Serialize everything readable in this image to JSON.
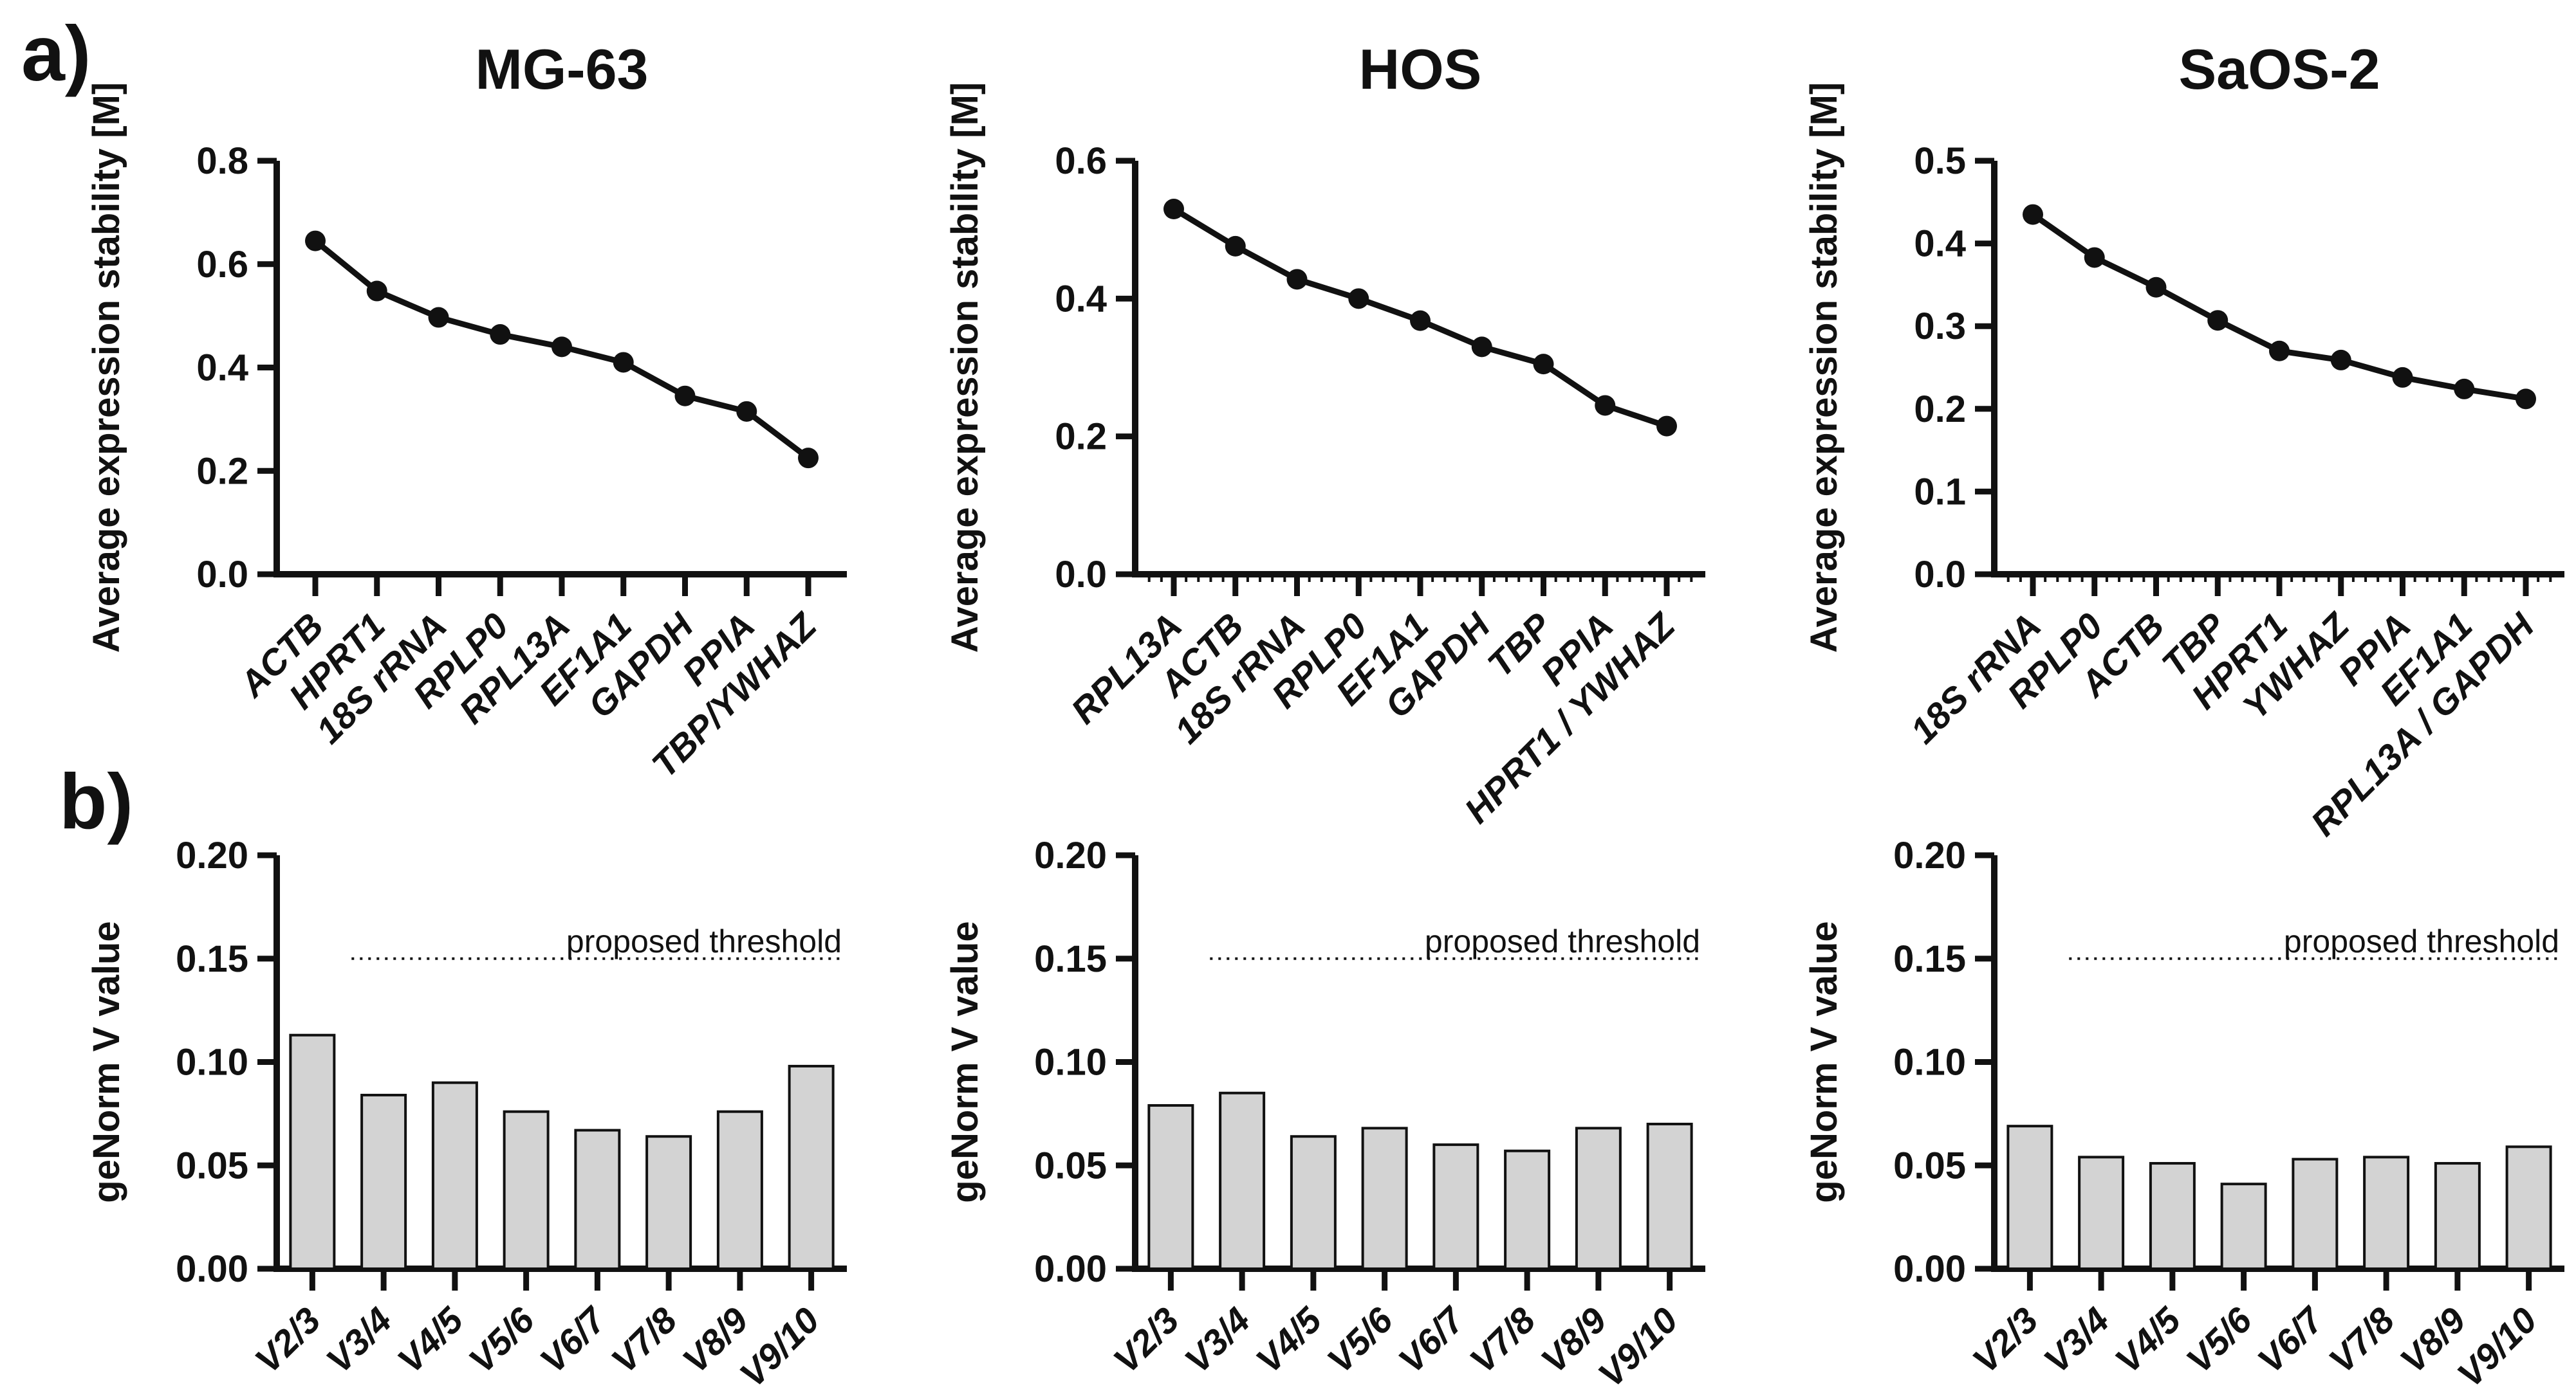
{
  "panels": {
    "a": "a)",
    "b": "b)"
  },
  "appearance": {
    "ink": "#111111",
    "bar_fill": "#d3d3d3",
    "background": "#ffffff"
  },
  "chart_data": [
    {
      "id": "mg63-stability",
      "panel": "a",
      "type": "line",
      "title": "MG-63",
      "ylabel": "Average expression stability [M]",
      "ylim": [
        0.0,
        0.8
      ],
      "ytick_step": 0.2,
      "ytick_decimals": 1,
      "grid": false,
      "legend": "none",
      "x_minor_ticks": false,
      "categories": [
        "ACTB",
        "HPRT1",
        "18S rRNA",
        "RPLP0",
        "RPL13A",
        "EF1A1",
        "GAPDH",
        "PPIA",
        "TBP/YWHAZ"
      ],
      "values": [
        0.645,
        0.548,
        0.497,
        0.464,
        0.44,
        0.41,
        0.345,
        0.315,
        0.225
      ]
    },
    {
      "id": "hos-stability",
      "panel": "a",
      "type": "line",
      "title": "HOS",
      "ylabel": "Average expression stability [M]",
      "ylim": [
        0.0,
        0.6
      ],
      "ytick_step": 0.2,
      "ytick_decimals": 1,
      "grid": false,
      "legend": "none",
      "x_minor_ticks": true,
      "categories": [
        "RPL13A",
        "ACTB",
        "18S rRNA",
        "RPLP0",
        "EF1A1",
        "GAPDH",
        "TBP",
        "PPIA",
        "HPRT1 / YWHAZ"
      ],
      "values": [
        0.53,
        0.476,
        0.428,
        0.4,
        0.368,
        0.33,
        0.305,
        0.245,
        0.215
      ]
    },
    {
      "id": "saos2-stability",
      "panel": "a",
      "type": "line",
      "title": "SaOS-2",
      "ylabel": "Average expression stability [M]",
      "ylim": [
        0.0,
        0.5
      ],
      "ytick_step": 0.1,
      "ytick_decimals": 1,
      "grid": false,
      "legend": "none",
      "x_minor_ticks": true,
      "categories": [
        "18S rRNA",
        "RPLP0",
        "ACTB",
        "TBP",
        "HPRT1",
        "YWHAZ",
        "PPIA",
        "EF1A1",
        "RPL13A / GAPDH"
      ],
      "values": [
        0.435,
        0.383,
        0.347,
        0.307,
        0.27,
        0.259,
        0.238,
        0.224,
        0.212
      ]
    },
    {
      "id": "mg63-genorm",
      "panel": "b",
      "type": "bar",
      "title": "",
      "ylabel": "geNorm V value",
      "ylim": [
        0.0,
        0.2
      ],
      "ytick_step": 0.05,
      "ytick_decimals": 2,
      "grid": false,
      "legend": "none",
      "x_minor_ticks": false,
      "threshold": {
        "value": 0.15,
        "label": "proposed threshold"
      },
      "categories": [
        "V2/3",
        "V3/4",
        "V4/5",
        "V5/6",
        "V6/7",
        "V7/8",
        "V8/9",
        "V9/10"
      ],
      "values": [
        0.113,
        0.084,
        0.09,
        0.076,
        0.067,
        0.064,
        0.076,
        0.098
      ]
    },
    {
      "id": "hos-genorm",
      "panel": "b",
      "type": "bar",
      "title": "",
      "ylabel": "geNorm V value",
      "ylim": [
        0.0,
        0.2
      ],
      "ytick_step": 0.05,
      "ytick_decimals": 2,
      "grid": false,
      "legend": "none",
      "x_minor_ticks": false,
      "threshold": {
        "value": 0.15,
        "label": "proposed threshold"
      },
      "categories": [
        "V2/3",
        "V3/4",
        "V4/5",
        "V5/6",
        "V6/7",
        "V7/8",
        "V8/9",
        "V9/10"
      ],
      "values": [
        0.079,
        0.085,
        0.064,
        0.068,
        0.06,
        0.057,
        0.068,
        0.07
      ]
    },
    {
      "id": "saos2-genorm",
      "panel": "b",
      "type": "bar",
      "title": "",
      "ylabel": "geNorm V value",
      "ylim": [
        0.0,
        0.2
      ],
      "ytick_step": 0.05,
      "ytick_decimals": 2,
      "grid": false,
      "legend": "none",
      "x_minor_ticks": false,
      "threshold": {
        "value": 0.15,
        "label": "proposed threshold"
      },
      "categories": [
        "V2/3",
        "V3/4",
        "V4/5",
        "V5/6",
        "V6/7",
        "V7/8",
        "V8/9",
        "V9/10"
      ],
      "values": [
        0.069,
        0.054,
        0.051,
        0.041,
        0.053,
        0.054,
        0.051,
        0.059
      ]
    }
  ]
}
